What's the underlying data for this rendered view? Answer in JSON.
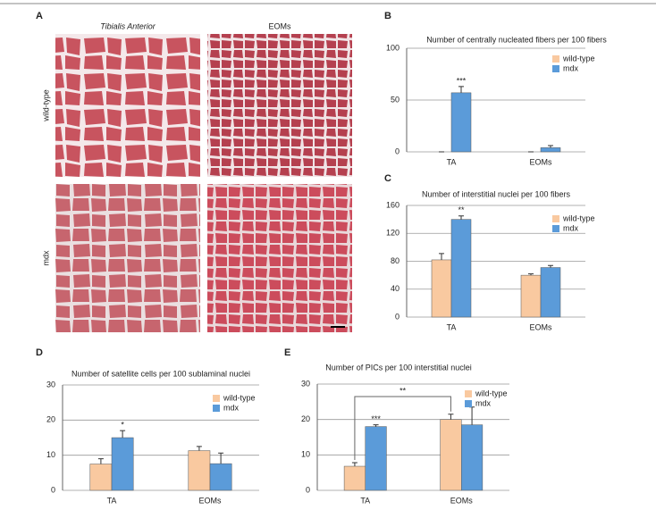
{
  "panel_a": {
    "label": "A",
    "columns": [
      "Tibialis Anterior",
      "EOMs"
    ],
    "rows": [
      "wild-type",
      "mdx"
    ]
  },
  "chart_data": [
    {
      "type": "bar",
      "panel_label": "B",
      "title": "Number of centrally nucleated fibers per 100 fibers",
      "categories": [
        "TA",
        "EOMs"
      ],
      "ylim": [
        0,
        100
      ],
      "yticks": [
        0,
        50,
        100
      ],
      "grid": true,
      "series": [
        {
          "name": "wild-type",
          "color": "#f9c9a0",
          "values": [
            0,
            0
          ],
          "errors": [
            0,
            0
          ]
        },
        {
          "name": "mdx",
          "color": "#5b9bd9",
          "values": [
            57,
            4
          ],
          "errors": [
            6,
            2
          ]
        }
      ],
      "annotations": [
        "***"
      ]
    },
    {
      "type": "bar",
      "panel_label": "C",
      "title": "Number of interstitial nuclei per 100 fibers",
      "categories": [
        "TA",
        "EOMs"
      ],
      "ylim": [
        0,
        160
      ],
      "yticks": [
        0,
        40,
        80,
        120,
        160
      ],
      "grid": true,
      "series": [
        {
          "name": "wild-type",
          "color": "#f9c9a0",
          "values": [
            82,
            60
          ],
          "errors": [
            9,
            2
          ]
        },
        {
          "name": "mdx",
          "color": "#5b9bd9",
          "values": [
            140,
            71
          ],
          "errors": [
            5,
            3
          ]
        }
      ],
      "annotations": [
        "**"
      ]
    },
    {
      "type": "bar",
      "panel_label": "D",
      "title": "Number of satellite cells per 100 sublaminal nuclei",
      "categories": [
        "TA",
        "EOMs"
      ],
      "ylim": [
        0,
        30
      ],
      "yticks": [
        0,
        10,
        20,
        30
      ],
      "grid": true,
      "series": [
        {
          "name": "wild-type",
          "color": "#f9c9a0",
          "values": [
            7.5,
            11.3
          ],
          "errors": [
            1.5,
            1.2
          ]
        },
        {
          "name": "mdx",
          "color": "#5b9bd9",
          "values": [
            15,
            7.6
          ],
          "errors": [
            2,
            3
          ]
        }
      ],
      "annotations": [
        "*"
      ]
    },
    {
      "type": "bar",
      "panel_label": "E",
      "title": "Number of PICs per 100 interstitial nuclei",
      "categories": [
        "TA",
        "EOMs"
      ],
      "ylim": [
        0,
        30
      ],
      "yticks": [
        0,
        10,
        20,
        30
      ],
      "grid": true,
      "series": [
        {
          "name": "wild-type",
          "color": "#f9c9a0",
          "values": [
            6.8,
            20
          ],
          "errors": [
            1,
            1.5
          ]
        },
        {
          "name": "mdx",
          "color": "#5b9bd9",
          "values": [
            18,
            18.5
          ],
          "errors": [
            0.5,
            5
          ]
        }
      ],
      "annotations": [
        "***",
        "**"
      ]
    }
  ]
}
